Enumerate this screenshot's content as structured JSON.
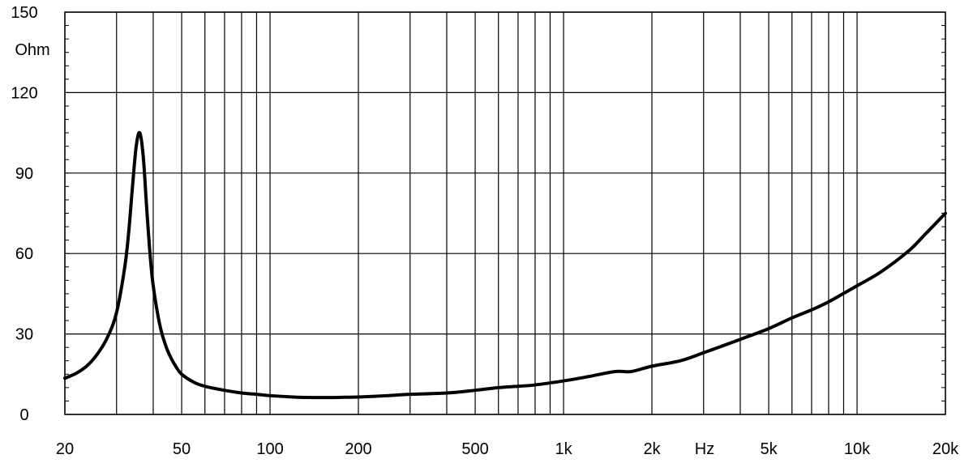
{
  "chart_data": {
    "type": "line",
    "title": "",
    "xlabel": "Hz",
    "ylabel": "Ohm",
    "x_scale": "log",
    "xlim": [
      20,
      20000
    ],
    "ylim": [
      0,
      150
    ],
    "grid": true,
    "y_ticks": [
      {
        "value": 0,
        "label": "0"
      },
      {
        "value": 30,
        "label": "30"
      },
      {
        "value": 60,
        "label": "60"
      },
      {
        "value": 90,
        "label": "90"
      },
      {
        "value": 120,
        "label": "120"
      },
      {
        "value": 150,
        "label": "150"
      }
    ],
    "x_ticks": [
      {
        "value": 20,
        "label": "20"
      },
      {
        "value": 50,
        "label": "50"
      },
      {
        "value": 100,
        "label": "100"
      },
      {
        "value": 200,
        "label": "200"
      },
      {
        "value": 500,
        "label": "500"
      },
      {
        "value": 1000,
        "label": "1k"
      },
      {
        "value": 2000,
        "label": "2k"
      },
      {
        "value": 5000,
        "label": "5k"
      },
      {
        "value": 10000,
        "label": "10k"
      },
      {
        "value": 20000,
        "label": "20k"
      }
    ],
    "x_gridlines": [
      20,
      30,
      40,
      50,
      60,
      70,
      80,
      90,
      100,
      200,
      300,
      400,
      500,
      600,
      700,
      800,
      900,
      1000,
      2000,
      3000,
      4000,
      5000,
      6000,
      7000,
      8000,
      9000,
      10000,
      20000
    ],
    "series": [
      {
        "color": "#000000",
        "x": [
          20,
          22,
          24,
          26,
          28,
          30,
          32,
          33,
          34,
          35,
          36,
          37,
          38,
          39,
          40,
          42,
          44,
          46,
          48,
          50,
          55,
          60,
          70,
          80,
          90,
          100,
          120,
          140,
          160,
          180,
          200,
          250,
          300,
          400,
          500,
          600,
          700,
          800,
          1000,
          1200,
          1500,
          1700,
          2000,
          2500,
          3000,
          4000,
          5000,
          6000,
          7000,
          8000,
          10000,
          12000,
          15000,
          17000,
          20000
        ],
        "y": [
          13.5,
          15.5,
          18.5,
          23,
          29,
          38,
          55,
          68,
          85,
          100,
          105,
          96,
          77,
          60,
          48,
          34,
          26,
          21,
          17.5,
          15,
          12,
          10.5,
          9,
          8,
          7.5,
          7,
          6.5,
          6.3,
          6.3,
          6.4,
          6.5,
          7,
          7.5,
          8,
          9,
          10,
          10.5,
          11,
          12.5,
          14,
          16,
          16,
          18,
          20,
          23,
          28,
          32,
          36,
          39,
          42,
          48,
          53,
          61,
          67,
          75
        ]
      }
    ]
  }
}
